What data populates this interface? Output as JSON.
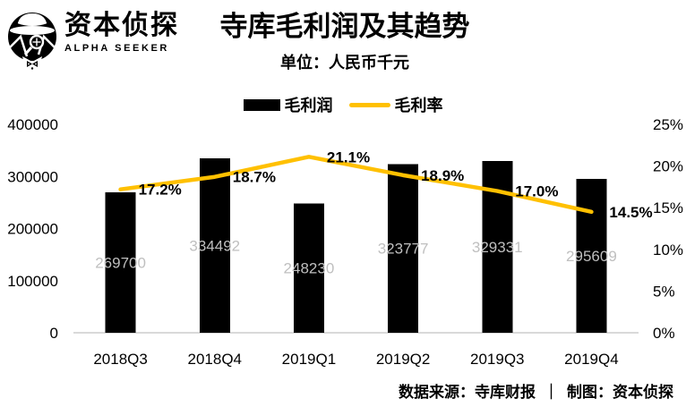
{
  "brand": {
    "name": "资本侦探",
    "subname": "ALPHA SEEKER"
  },
  "header": {
    "title": "寺库毛利润及其趋势",
    "subtitle": "单位：人民币千元"
  },
  "legend": [
    {
      "label": "毛利润",
      "type": "bar",
      "color": "#000000"
    },
    {
      "label": "毛利率",
      "type": "line",
      "color": "#FFC000"
    }
  ],
  "footer": {
    "source": "数据来源：寺库财报",
    "separator": "｜",
    "credit": "制图：",
    "brand": "资本侦探"
  },
  "colors": {
    "bar": "#000000",
    "line": "#FFC000",
    "value_label": "#BFBFBF",
    "axis_line": "#D9D9D9",
    "text": "#000000"
  },
  "chart_data": {
    "type": "bar",
    "combo": "bar+line",
    "title": "寺库毛利润及其趋势",
    "subtitle": "单位：人民币千元",
    "categories": [
      "2018Q3",
      "2018Q4",
      "2019Q1",
      "2019Q2",
      "2019Q3",
      "2019Q4"
    ],
    "series": [
      {
        "name": "毛利润",
        "type": "bar",
        "axis": "left",
        "color": "#000000",
        "values": [
          269700,
          334492,
          248230,
          323777,
          329331,
          295609
        ],
        "value_labels": [
          "269700",
          "334492",
          "248230",
          "323777",
          "329331",
          "295609"
        ]
      },
      {
        "name": "毛利率",
        "type": "line",
        "axis": "right",
        "color": "#FFC000",
        "values": [
          17.2,
          18.7,
          21.1,
          18.9,
          17.0,
          14.5
        ],
        "value_labels": [
          "17.2%",
          "18.7%",
          "21.1%",
          "18.9%",
          "17.0%",
          "14.5%"
        ]
      }
    ],
    "left_axis": {
      "min": 0,
      "max": 400000,
      "tick_values": [
        0,
        100000,
        200000,
        300000,
        400000
      ],
      "tick_labels": [
        "0",
        "100000",
        "200000",
        "300000",
        "400000"
      ]
    },
    "right_axis": {
      "min": 0,
      "max": 25,
      "tick_values": [
        0,
        5,
        10,
        15,
        20,
        25
      ],
      "tick_labels": [
        "0%",
        "5%",
        "10%",
        "15%",
        "20%",
        "25%"
      ]
    },
    "grid": false,
    "legend_position": "top"
  }
}
